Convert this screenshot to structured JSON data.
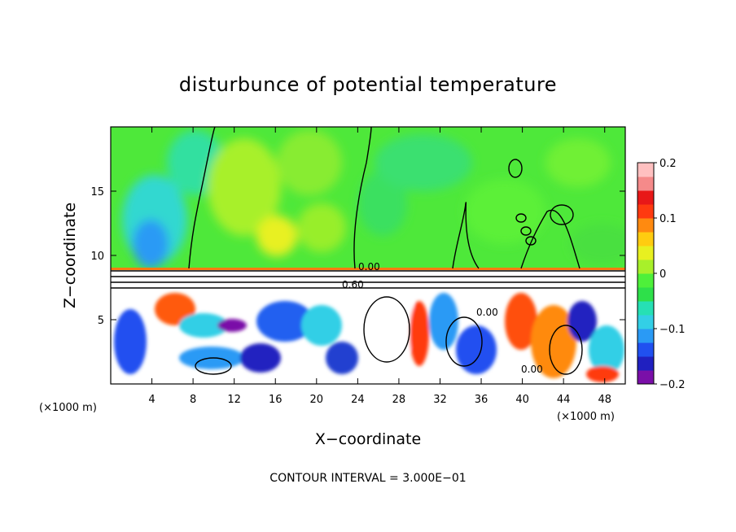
{
  "chart_data": {
    "type": "heatmap",
    "title": "disturbunce of potential temperature",
    "xlabel": "X−coordinate",
    "ylabel": "Z−coordinate",
    "x_unit": "(×1000 m)",
    "z_unit": "(×1000 m)",
    "xlim": [
      0,
      50
    ],
    "ylim": [
      0,
      20
    ],
    "x_ticks": [
      4,
      8,
      12,
      16,
      20,
      24,
      28,
      32,
      36,
      40,
      44,
      48
    ],
    "x_tick_labels": [
      "4",
      "8",
      "12",
      "16",
      "20",
      "24",
      "28",
      "32",
      "36",
      "40",
      "44",
      "48"
    ],
    "y_ticks": [
      5,
      10,
      15
    ],
    "y_tick_labels": [
      "5",
      "10",
      "15"
    ],
    "colorbar": {
      "min": -0.2,
      "max": 0.2,
      "ticks": [
        0.2,
        0.1,
        0,
        -0.1,
        -0.2
      ],
      "tick_labels": [
        "0.2",
        "0.1",
        "0",
        "−0.1",
        "−0.2"
      ],
      "colors": [
        "#7a0fa8",
        "#2020c0",
        "#2050f0",
        "#2a9af5",
        "#33cfe6",
        "#26e0b4",
        "#2ee04a",
        "#4ef03a",
        "#a8f02a",
        "#e8f020",
        "#ffcc10",
        "#ff8a10",
        "#ff3a10",
        "#e81818",
        "#f58a8a",
        "#ffc0c0"
      ]
    },
    "contour_labels": [
      "0.00",
      "0.60",
      "0.00",
      "0.00"
    ],
    "annotation": "CONTOUR INTERVAL =  3.000E−01",
    "grid": false
  }
}
